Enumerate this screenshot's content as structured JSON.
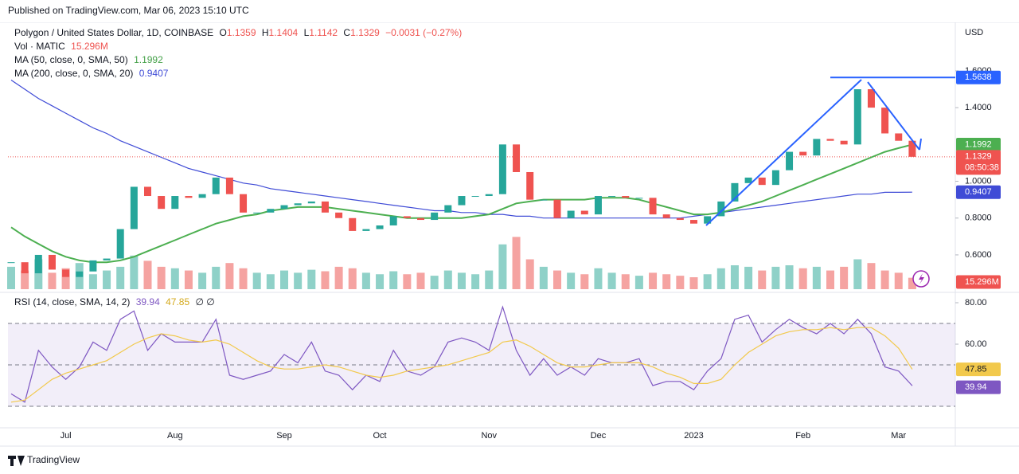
{
  "header": {
    "published": "Published on TradingView.com, Mar 06, 2023 15:10 UTC",
    "logo": "TradingView"
  },
  "chart_data": [
    {
      "type": "candlestick",
      "symbol": "Polygon / United States Dollar, 1D, COINBASE",
      "o": "O",
      "open": 1.1359,
      "h": "H",
      "high": 1.1404,
      "l": "L",
      "low": 1.1142,
      "c": "C",
      "change": "−0.0031 (−0.27%)",
      "currency": "USD",
      "countdown": "08:50:38",
      "up_color": "#26a69a",
      "down_color": "#ef5350",
      "categories": [
        null,
        null,
        null,
        null,
        "Jul",
        null,
        null,
        null,
        null,
        null,
        null,
        null,
        "Aug",
        null,
        null,
        null,
        null,
        null,
        null,
        null,
        "Sep",
        null,
        null,
        null,
        null,
        null,
        null,
        "Oct",
        null,
        null,
        null,
        null,
        null,
        null,
        null,
        "Nov",
        null,
        null,
        null,
        null,
        null,
        null,
        null,
        "Dec",
        null,
        null,
        null,
        null,
        null,
        null,
        "2023",
        null,
        null,
        null,
        null,
        null,
        null,
        null,
        "Feb",
        null,
        null,
        null,
        null,
        null,
        null,
        "Mar",
        null
      ],
      "close": [
        0.56,
        0.5,
        0.6,
        0.52,
        0.48,
        0.51,
        0.57,
        0.58,
        0.74,
        0.97,
        0.92,
        0.85,
        0.92,
        0.91,
        0.93,
        1.02,
        0.93,
        0.83,
        0.83,
        0.85,
        0.87,
        0.88,
        0.89,
        0.83,
        0.8,
        0.73,
        0.74,
        0.76,
        0.81,
        0.8,
        0.79,
        0.83,
        0.87,
        0.92,
        0.92,
        0.93,
        1.2,
        1.05,
        0.9,
        0.9,
        0.8,
        0.84,
        0.82,
        0.92,
        0.92,
        0.91,
        0.91,
        0.82,
        0.8,
        0.79,
        0.77,
        0.81,
        0.89,
        0.99,
        1.02,
        0.98,
        1.06,
        1.16,
        1.14,
        1.23,
        1.22,
        1.2,
        1.5,
        1.4,
        1.26,
        1.22,
        1.1329
      ],
      "volume": {
        "name": "Vol · MATIC",
        "values": [
          30,
          25,
          40,
          22,
          28,
          35,
          20,
          25,
          30,
          45,
          38,
          30,
          28,
          25,
          22,
          30,
          35,
          28,
          22,
          20,
          25,
          22,
          26,
          24,
          30,
          28,
          22,
          20,
          24,
          20,
          22,
          18,
          25,
          22,
          20,
          25,
          60,
          70,
          40,
          30,
          25,
          22,
          20,
          28,
          22,
          20,
          18,
          22,
          20,
          18,
          16,
          20,
          28,
          32,
          30,
          25,
          30,
          32,
          28,
          30,
          25,
          30,
          40,
          35,
          25,
          22,
          15.296
        ],
        "value_labels": [
          null,
          null,
          null,
          null,
          null,
          null,
          null,
          null,
          null,
          null,
          null,
          null,
          null,
          null,
          null,
          null,
          null,
          null,
          null,
          null,
          null,
          null,
          null,
          null,
          null,
          null,
          null,
          null,
          null,
          null,
          null,
          null,
          null,
          null,
          null,
          null,
          null,
          null,
          null,
          null,
          null,
          null,
          null,
          null,
          null,
          null,
          null,
          null,
          null,
          null,
          null,
          null,
          null,
          null,
          null,
          null,
          null,
          null,
          null,
          null,
          null,
          null,
          null,
          null,
          null,
          null,
          "15.296M"
        ],
        "up_color": "#8fd1c8",
        "down_color": "#f5a3a1",
        "badge_color": "#ef5350"
      },
      "ma50": {
        "name": "MA (50, close, 0, SMA, 50)",
        "color": "#4caf50",
        "values": [
          0.75,
          0.7,
          0.66,
          0.62,
          0.59,
          0.57,
          0.56,
          0.56,
          0.57,
          0.59,
          0.62,
          0.65,
          0.68,
          0.71,
          0.74,
          0.77,
          0.79,
          0.81,
          0.82,
          0.84,
          0.85,
          0.86,
          0.86,
          0.86,
          0.85,
          0.84,
          0.83,
          0.82,
          0.81,
          0.8,
          0.8,
          0.8,
          0.8,
          0.8,
          0.81,
          0.82,
          0.85,
          0.88,
          0.89,
          0.9,
          0.9,
          0.9,
          0.9,
          0.91,
          0.91,
          0.91,
          0.9,
          0.88,
          0.86,
          0.84,
          0.82,
          0.82,
          0.83,
          0.85,
          0.87,
          0.89,
          0.92,
          0.95,
          0.98,
          1.01,
          1.04,
          1.07,
          1.1,
          1.13,
          1.16,
          1.18,
          1.1992
        ]
      },
      "ma200": {
        "name": "MA (200, close, 0, SMA, 20)",
        "color": "#3f4bd6",
        "values": [
          1.55,
          1.5,
          1.45,
          1.41,
          1.37,
          1.33,
          1.29,
          1.26,
          1.22,
          1.19,
          1.16,
          1.13,
          1.1,
          1.07,
          1.05,
          1.03,
          1.01,
          0.99,
          0.98,
          0.96,
          0.95,
          0.94,
          0.93,
          0.92,
          0.91,
          0.9,
          0.89,
          0.88,
          0.87,
          0.86,
          0.85,
          0.84,
          0.84,
          0.83,
          0.83,
          0.82,
          0.82,
          0.81,
          0.81,
          0.8,
          0.8,
          0.8,
          0.8,
          0.8,
          0.8,
          0.8,
          0.8,
          0.8,
          0.8,
          0.8,
          0.81,
          0.82,
          0.83,
          0.84,
          0.85,
          0.86,
          0.87,
          0.88,
          0.89,
          0.9,
          0.91,
          0.92,
          0.93,
          0.93,
          0.94,
          0.94,
          0.9407
        ]
      },
      "drawing_level": 1.5638,
      "drawing_color": "#2962ff",
      "ylim": [
        0.405,
        1.855
      ],
      "yticks": [
        {
          "value": 0.6,
          "label": "0.6000"
        },
        {
          "value": 0.8,
          "label": "0.8000"
        },
        {
          "value": 1.0,
          "label": "1.0000"
        },
        {
          "value": 1.4,
          "label": "1.4000"
        },
        {
          "value": 1.6,
          "label": "1.6000"
        }
      ]
    },
    {
      "type": "line",
      "title": "RSI (14, close, SMA, 14, 2)",
      "extra": "∅ ∅",
      "series": [
        {
          "color": "#7e57c2",
          "values": [
            36,
            32,
            57,
            49,
            43,
            49,
            61,
            57,
            72,
            76,
            57,
            65,
            61,
            61,
            61,
            72,
            45,
            43,
            45,
            47,
            55,
            51,
            61,
            47,
            45,
            38,
            45,
            42,
            57,
            47,
            45,
            49,
            61,
            63,
            61,
            57,
            78,
            57,
            45,
            53,
            45,
            49,
            45,
            53,
            51,
            51,
            53,
            40,
            42,
            42,
            38,
            47,
            53,
            72,
            74,
            61,
            67,
            72,
            68,
            65,
            70,
            65,
            72,
            65,
            49,
            47,
            39.94
          ]
        },
        {
          "color": "#f2c94c",
          "values": [
            32,
            33,
            38,
            43,
            46,
            48,
            50,
            52,
            56,
            60,
            63,
            65,
            64,
            62,
            61,
            62,
            60,
            56,
            52,
            49,
            48,
            48,
            49,
            50,
            49,
            47,
            45,
            44,
            45,
            47,
            48,
            49,
            50,
            52,
            54,
            56,
            61,
            62,
            59,
            55,
            51,
            49,
            49,
            50,
            51,
            51,
            51,
            49,
            46,
            44,
            41,
            41,
            43,
            50,
            56,
            60,
            64,
            66,
            67,
            67,
            68,
            67,
            68,
            68,
            64,
            58,
            47.85
          ]
        }
      ],
      "band": [
        30,
        70
      ],
      "midline": 50,
      "band_color": "#7e57c2",
      "ylim": [
        20.4,
        83.85
      ],
      "yticks": [
        {
          "value": 60,
          "label": "60.00"
        },
        {
          "value": 80,
          "label": "80.00"
        }
      ]
    }
  ]
}
